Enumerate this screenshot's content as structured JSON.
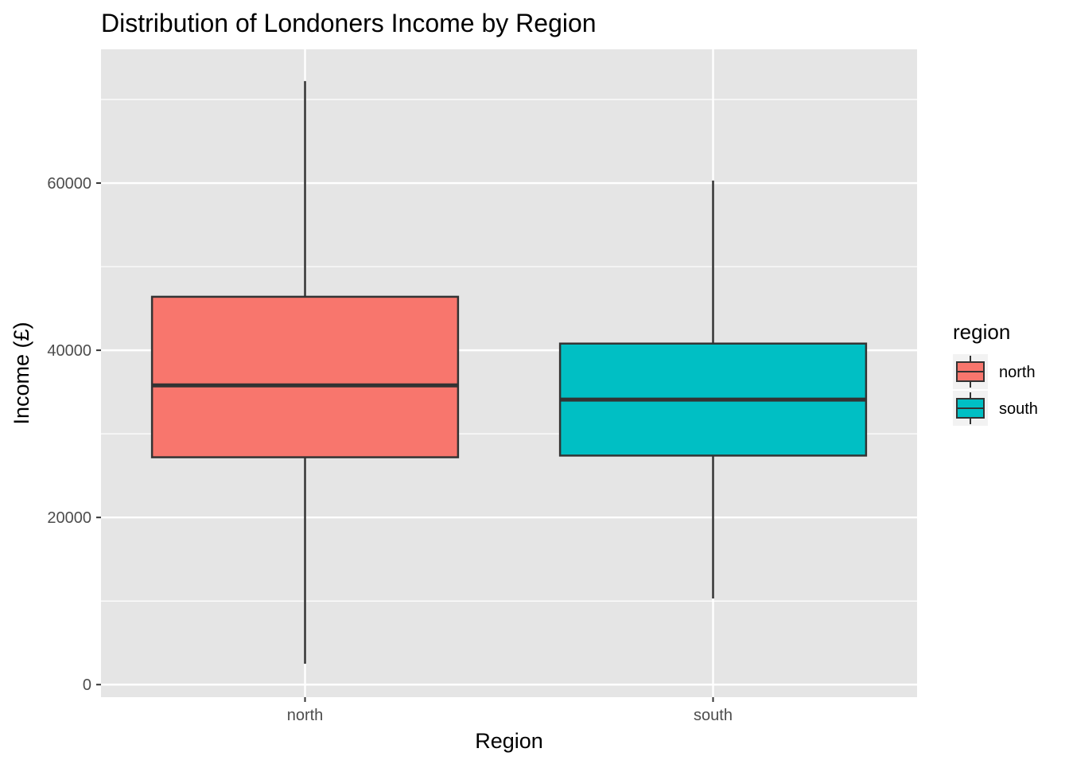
{
  "chart_data": {
    "type": "boxplot",
    "title": "Distribution of Londoners Income by Region",
    "xlabel": "Region",
    "ylabel": "Income (£)",
    "categories": [
      "north",
      "south"
    ],
    "ylim": [
      -1500,
      76000
    ],
    "yticks": [
      0,
      20000,
      40000,
      60000
    ],
    "ytick_labels": [
      "0",
      "20000",
      "40000",
      "60000"
    ],
    "grid": true,
    "series": [
      {
        "name": "north",
        "color": "#F8766D",
        "min": 2500,
        "q1": 27200,
        "median": 35800,
        "q3": 46400,
        "max": 72200
      },
      {
        "name": "south",
        "color": "#00BFC4",
        "min": 10300,
        "q1": 27400,
        "median": 34100,
        "q3": 40800,
        "max": 60300
      }
    ],
    "legend": {
      "title": "region",
      "position": "right",
      "entries": [
        "north",
        "south"
      ]
    },
    "colors": {
      "panel_background": "#E5E5E5",
      "grid": "#FFFFFF",
      "box_outline": "#333333"
    }
  }
}
